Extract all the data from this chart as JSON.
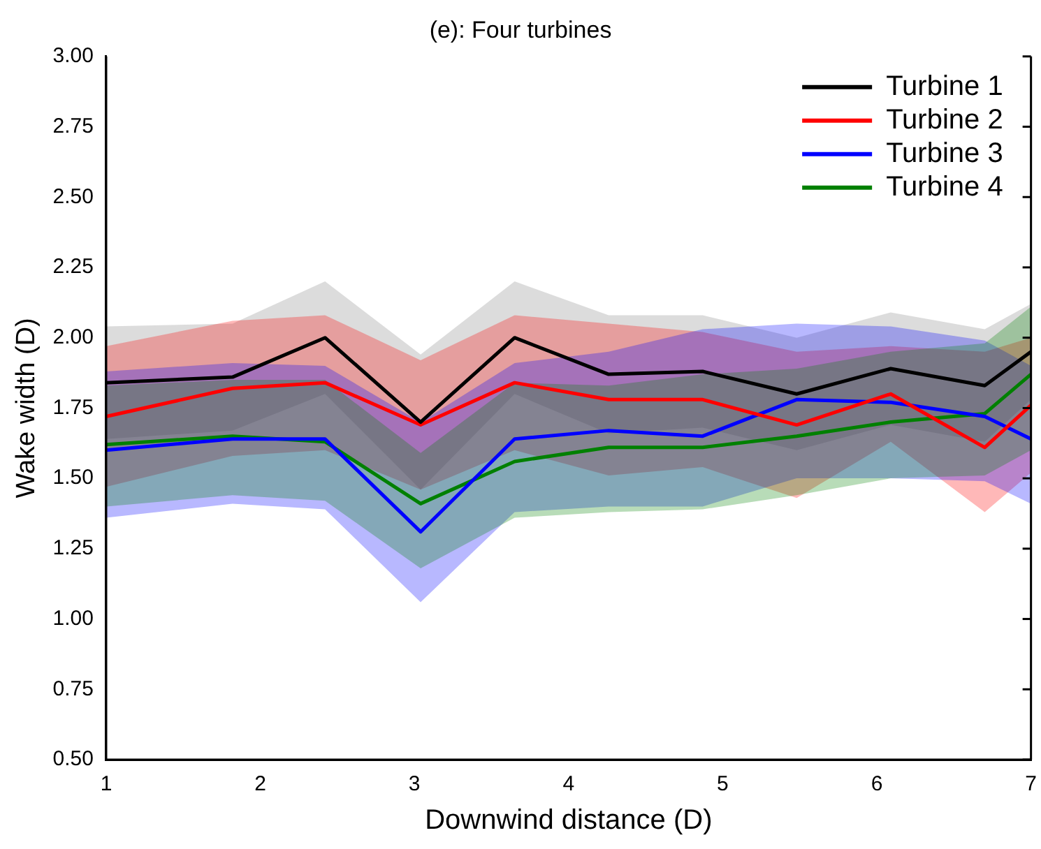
{
  "chart_data": {
    "type": "line",
    "title": "(e): Four turbines",
    "xlabel": "Downwind distance (D)",
    "ylabel": "Wake width (D)",
    "xlim": [
      1,
      7
    ],
    "xticks": [
      1,
      2,
      3,
      4,
      5,
      6,
      7
    ],
    "ylim": [
      0.5,
      3.0
    ],
    "yticks": [
      {
        "value": 0.5,
        "label": "0.50"
      },
      {
        "value": 0.75,
        "label": "0.75"
      },
      {
        "value": 1.0,
        "label": "1.00"
      },
      {
        "value": 1.25,
        "label": "1.25"
      },
      {
        "value": 1.5,
        "label": "1.50"
      },
      {
        "value": 1.75,
        "label": "1.75"
      },
      {
        "value": 2.0,
        "label": "2.00"
      },
      {
        "value": 2.25,
        "label": "2.25"
      },
      {
        "value": 2.5,
        "label": "2.50"
      },
      {
        "value": 2.75,
        "label": "2.75"
      },
      {
        "value": 3.0,
        "label": "3.00"
      }
    ],
    "x": [
      1.0,
      1.82,
      2.42,
      3.04,
      3.65,
      4.26,
      4.87,
      5.48,
      6.09,
      6.7,
      7.0
    ],
    "grid": false,
    "legend": "top right",
    "marker": "none",
    "line_style": "solid",
    "series": [
      {
        "name": "Turbine 1",
        "color": "#000000",
        "values": [
          1.84,
          1.86,
          2.0,
          1.7,
          2.0,
          1.87,
          1.88,
          1.8,
          1.89,
          1.83,
          1.95
        ],
        "upper": [
          2.04,
          2.05,
          2.2,
          1.94,
          2.2,
          2.08,
          2.08,
          2.0,
          2.09,
          2.03,
          2.12
        ],
        "lower": [
          1.64,
          1.67,
          1.8,
          1.46,
          1.8,
          1.66,
          1.68,
          1.6,
          1.69,
          1.63,
          1.78
        ]
      },
      {
        "name": "Turbine 2",
        "color": "#ff0000",
        "values": [
          1.72,
          1.82,
          1.84,
          1.69,
          1.84,
          1.78,
          1.78,
          1.69,
          1.8,
          1.61,
          1.76
        ],
        "upper": [
          1.97,
          2.06,
          2.08,
          1.92,
          2.08,
          2.05,
          2.02,
          1.95,
          1.97,
          1.95,
          2.0
        ],
        "lower": [
          1.47,
          1.58,
          1.6,
          1.46,
          1.6,
          1.51,
          1.54,
          1.43,
          1.63,
          1.38,
          1.52
        ]
      },
      {
        "name": "Turbine 3",
        "color": "#0000ff",
        "values": [
          1.6,
          1.64,
          1.64,
          1.31,
          1.64,
          1.67,
          1.65,
          1.78,
          1.77,
          1.72,
          1.64
        ],
        "upper": [
          1.88,
          1.91,
          1.9,
          1.7,
          1.91,
          1.95,
          2.03,
          2.05,
          2.04,
          1.99,
          1.9
        ],
        "lower": [
          1.36,
          1.41,
          1.39,
          1.06,
          1.38,
          1.4,
          1.4,
          1.5,
          1.5,
          1.49,
          1.41
        ]
      },
      {
        "name": "Turbine 4",
        "color": "#008000",
        "values": [
          1.62,
          1.65,
          1.63,
          1.41,
          1.56,
          1.61,
          1.61,
          1.65,
          1.7,
          1.73,
          1.87
        ],
        "upper": [
          1.83,
          1.85,
          1.85,
          1.59,
          1.84,
          1.83,
          1.87,
          1.89,
          1.95,
          1.98,
          2.11
        ],
        "lower": [
          1.4,
          1.44,
          1.42,
          1.18,
          1.36,
          1.38,
          1.39,
          1.44,
          1.5,
          1.51,
          1.6
        ]
      }
    ]
  }
}
